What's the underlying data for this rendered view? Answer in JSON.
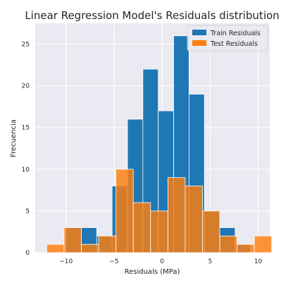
{
  "chart_data": {
    "type": "bar",
    "title": "Linear Regression Model's Residuals distribution",
    "xlabel": "Residuals (MPa)",
    "ylabel": "Frecuencia",
    "xlim": [
      -13.2,
      11.2
    ],
    "ylim": [
      0,
      27.5
    ],
    "xticks": [
      -10,
      -5,
      0,
      5,
      10
    ],
    "yticks": [
      0,
      5,
      10,
      15,
      20,
      25
    ],
    "grid": true,
    "legend_position": "top-right",
    "series": [
      {
        "name": "Train Residuals",
        "color": "#1f77b4",
        "bins": [
          {
            "x0": -10.0,
            "x1": -8.4,
            "value": 3
          },
          {
            "x0": -8.4,
            "x1": -6.8,
            "value": 3
          },
          {
            "x0": -6.8,
            "x1": -5.2,
            "value": 2
          },
          {
            "x0": -5.2,
            "x1": -3.6,
            "value": 8
          },
          {
            "x0": -3.6,
            "x1": -2.0,
            "value": 16
          },
          {
            "x0": -2.0,
            "x1": -0.4,
            "value": 22
          },
          {
            "x0": -0.4,
            "x1": 1.2,
            "value": 17
          },
          {
            "x0": 1.2,
            "x1": 2.8,
            "value": 26
          },
          {
            "x0": 2.8,
            "x1": 4.4,
            "value": 19
          },
          {
            "x0": 4.4,
            "x1": 6.0,
            "value": 5
          },
          {
            "x0": 6.0,
            "x1": 7.6,
            "value": 3
          },
          {
            "x0": 7.6,
            "x1": 9.2,
            "value": 1
          }
        ]
      },
      {
        "name": "Test Residuals",
        "color": "#ff7f0e",
        "bins": [
          {
            "x0": -12.0,
            "x1": -10.2,
            "value": 1
          },
          {
            "x0": -10.2,
            "x1": -8.4,
            "value": 3
          },
          {
            "x0": -8.4,
            "x1": -6.6,
            "value": 1
          },
          {
            "x0": -6.6,
            "x1": -4.8,
            "value": 2
          },
          {
            "x0": -4.8,
            "x1": -3.0,
            "value": 10
          },
          {
            "x0": -3.0,
            "x1": -1.2,
            "value": 6
          },
          {
            "x0": -1.2,
            "x1": 0.6,
            "value": 5
          },
          {
            "x0": 0.6,
            "x1": 2.4,
            "value": 9
          },
          {
            "x0": 2.4,
            "x1": 4.2,
            "value": 8
          },
          {
            "x0": 4.2,
            "x1": 6.0,
            "value": 5
          },
          {
            "x0": 6.0,
            "x1": 7.8,
            "value": 2
          },
          {
            "x0": 7.8,
            "x1": 9.6,
            "value": 1
          },
          {
            "x0": 9.6,
            "x1": 11.4,
            "value": 2
          }
        ]
      }
    ]
  },
  "colors": {
    "plot_background": "#eaeaf2",
    "grid": "#ffffff",
    "bar_edge": "#ffffff"
  }
}
